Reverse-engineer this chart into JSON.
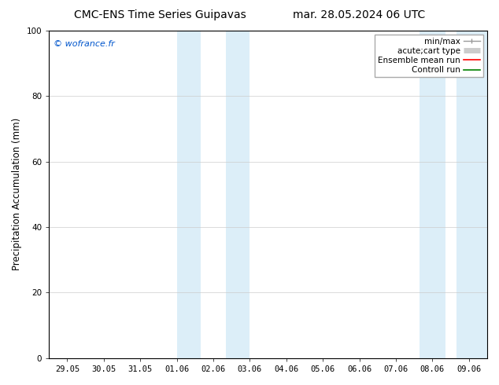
{
  "title_left": "CMC-ENS Time Series Guipavas",
  "title_right": "mar. 28.05.2024 06 UTC",
  "ylabel": "Precipitation Accumulation (mm)",
  "watermark": "© wofrance.fr",
  "watermark_color": "#0055cc",
  "ylim": [
    0,
    100
  ],
  "yticks": [
    0,
    20,
    40,
    60,
    80,
    100
  ],
  "xtick_labels": [
    "29.05",
    "30.05",
    "31.05",
    "01.06",
    "02.06",
    "03.06",
    "04.06",
    "05.06",
    "06.06",
    "07.06",
    "08.06",
    "09.06"
  ],
  "shaded_bands": [
    {
      "xmin": 3.0,
      "xmax": 3.5,
      "color": "#dceef8"
    },
    {
      "xmin": 4.0,
      "xmax": 5.0,
      "color": "#dceef8"
    },
    {
      "xmin": 10.0,
      "xmax": 10.5,
      "color": "#dceef8"
    },
    {
      "xmin": 10.5,
      "xmax": 11.5,
      "color": "#dceef8"
    }
  ],
  "legend_labels": [
    "min/max",
    "acute;cart type",
    "Ensemble mean run",
    "Controll run"
  ],
  "legend_colors": [
    "#999999",
    "#cccccc",
    "#ff0000",
    "#008000"
  ],
  "background_color": "#ffffff",
  "plot_bg_color": "#ffffff",
  "border_color": "#000000",
  "title_fontsize": 10,
  "tick_fontsize": 7.5,
  "ylabel_fontsize": 8.5,
  "legend_fontsize": 7.5,
  "watermark_fontsize": 8
}
